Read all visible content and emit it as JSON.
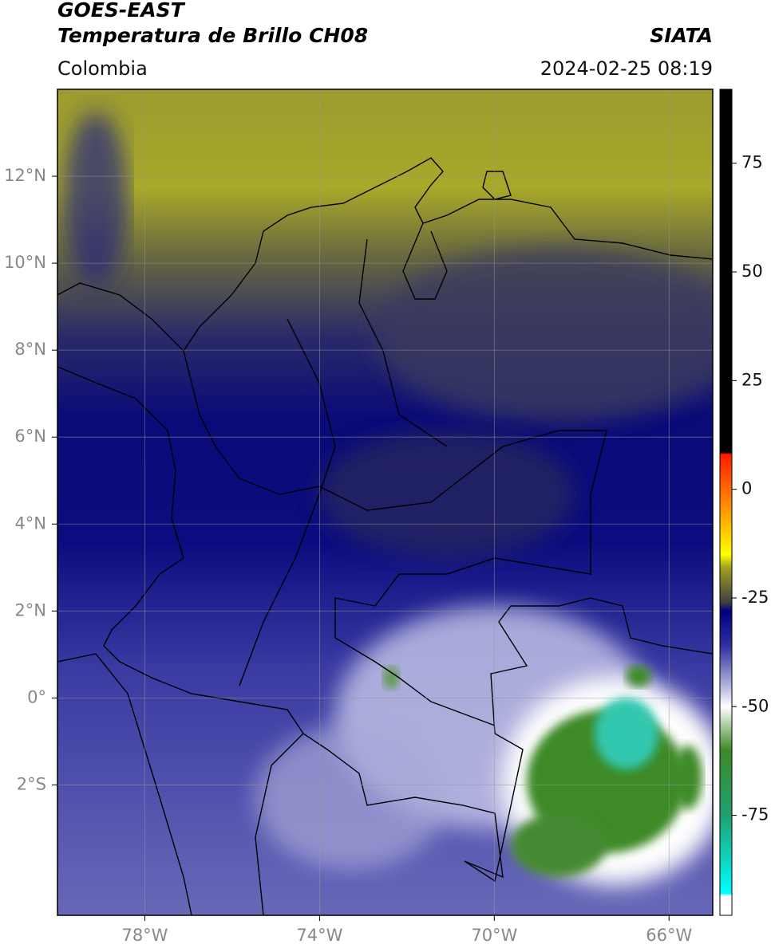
{
  "header": {
    "title": "GOES-EAST",
    "subtitle": "Temperatura de Brillo CH08",
    "source": "SIATA",
    "region": "Colombia",
    "datetime": "2024-02-25 08:19"
  },
  "map": {
    "xlim": [
      -80,
      -65
    ],
    "ylim": [
      -5,
      14
    ],
    "xticks": [
      {
        "value": -78,
        "label": "78°W"
      },
      {
        "value": -74,
        "label": "74°W"
      },
      {
        "value": -70,
        "label": "70°W"
      },
      {
        "value": -66,
        "label": "66°W"
      }
    ],
    "yticks": [
      {
        "value": 12,
        "label": "12°N"
      },
      {
        "value": 10,
        "label": "10°N"
      },
      {
        "value": 8,
        "label": "8°N"
      },
      {
        "value": 6,
        "label": "6°N"
      },
      {
        "value": 4,
        "label": "4°N"
      },
      {
        "value": 2,
        "label": "2°N"
      },
      {
        "value": 0,
        "label": "0°"
      },
      {
        "value": -2,
        "label": "2°S"
      }
    ],
    "grid": true
  },
  "colorbar": {
    "lim": [
      -98,
      92
    ],
    "ticks": [
      75,
      50,
      25,
      0,
      -25,
      -50,
      -75
    ],
    "colormap": [
      {
        "value": 92,
        "color": "#000000"
      },
      {
        "value": 8.5,
        "color": "#000000"
      },
      {
        "value": 8,
        "color": "#ff1a00"
      },
      {
        "value": -5,
        "color": "#ff9900"
      },
      {
        "value": -15,
        "color": "#ffff00"
      },
      {
        "value": -18,
        "color": "#a0a020"
      },
      {
        "value": -26,
        "color": "#404040"
      },
      {
        "value": -28,
        "color": "#000080"
      },
      {
        "value": -36,
        "color": "#3030a0"
      },
      {
        "value": -45,
        "color": "#b0b0dd"
      },
      {
        "value": -50,
        "color": "#ffffff"
      },
      {
        "value": -60,
        "color": "#3c8a28"
      },
      {
        "value": -75,
        "color": "#20a070"
      },
      {
        "value": -93,
        "color": "#00ffff"
      },
      {
        "value": -93.5,
        "color": "#ffffff"
      },
      {
        "value": -98,
        "color": "#ffffff"
      }
    ]
  }
}
